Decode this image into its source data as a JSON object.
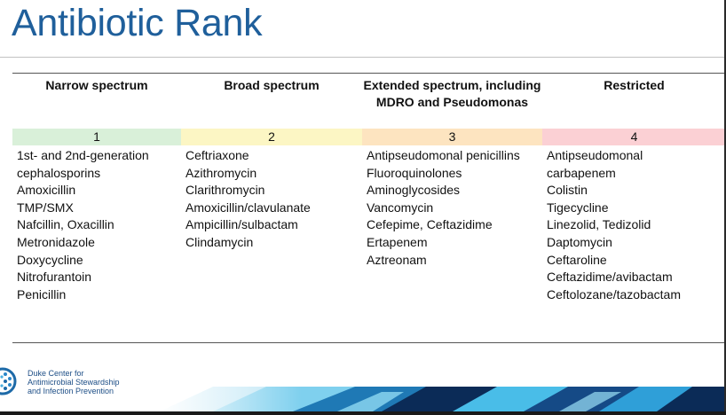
{
  "title": "Antibiotic Rank",
  "columns": [
    {
      "header": "Narrow spectrum",
      "rank": "1",
      "color": "#d9f0d9",
      "drugs": [
        "1st- and 2nd-generation",
        "cephalosporins",
        "Amoxicillin",
        "TMP/SMX",
        "Nafcillin, Oxacillin",
        "Metronidazole",
        "Doxycycline",
        "Nitrofurantoin",
        "Penicillin"
      ]
    },
    {
      "header": "Broad spectrum",
      "rank": "2",
      "color": "#fcf6c4",
      "drugs": [
        "Ceftriaxone",
        "Azithromycin",
        "Clarithromycin",
        "Amoxicillin/clavulanate",
        "Ampicillin/sulbactam",
        "Clindamycin"
      ]
    },
    {
      "header": "Extended spectrum, including MDRO and Pseudomonas",
      "rank": "3",
      "color": "#fde4c0",
      "drugs": [
        "Antipseudomonal penicillins",
        "Fluoroquinolones",
        "Aminoglycosides",
        "Vancomycin",
        "Cefepime, Ceftazidime",
        "Ertapenem",
        "Aztreonam"
      ]
    },
    {
      "header": "Restricted",
      "rank": "4",
      "color": "#fbd0d4",
      "drugs": [
        "Antipseudomonal",
        "carbapenem",
        "Colistin",
        "Tigecycline",
        "Linezolid, Tedizolid",
        "Daptomycin",
        "Ceftaroline",
        "Ceftazidime/avibactam",
        "Ceftolozane/tazobactam"
      ]
    }
  ],
  "footer": {
    "org_line1": "Duke Center for",
    "org_line2": "Antimicrobial Stewardship",
    "org_line3": "and Infection Prevention"
  },
  "colors": {
    "title": "#1f5f9b",
    "band_dark": "#0b2b57",
    "band_mid": "#1f79b5",
    "band_light": "#49bde8"
  }
}
